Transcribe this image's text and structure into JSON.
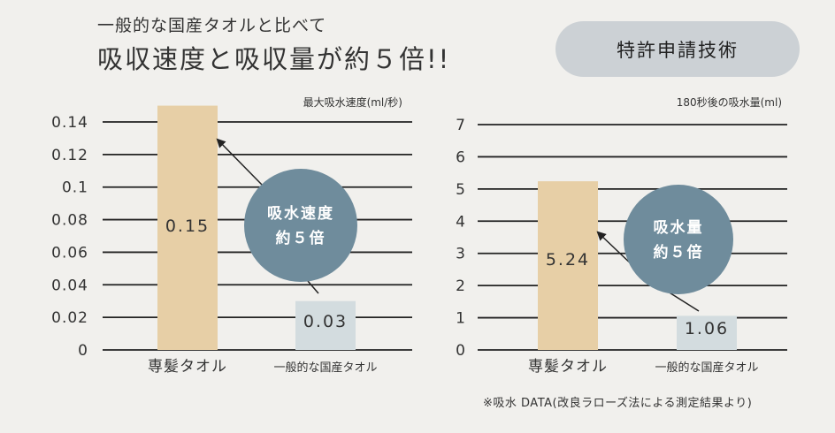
{
  "header": {
    "subtitle": "一般的な国産タオルと比べて",
    "title": "吸収速度と吸収量が約５倍!!"
  },
  "badge": {
    "label": "特許申請技術"
  },
  "footnote": "※吸水 DATA(改良ラローズ法による測定結果より)",
  "colors": {
    "bar_primary": "#e7cfa6",
    "bar_secondary": "#d3dcdf",
    "circle": "#6f8c9c",
    "grid": "#222222"
  },
  "chart_data": [
    {
      "type": "bar",
      "ylabel": "最大吸水速度(ml/秒)",
      "categories": [
        "専髪タオル",
        "一般的な国産タオル"
      ],
      "values": [
        0.15,
        0.03
      ],
      "value_labels": [
        "0.15",
        "0.03"
      ],
      "yticks": [
        0,
        0.02,
        0.04,
        0.06,
        0.08,
        0.1,
        0.12,
        0.14
      ],
      "ytick_labels": [
        "0",
        "0.02",
        "0.04",
        "0.06",
        "0.08",
        "0.1",
        "0.12",
        "0.14"
      ],
      "ylim": [
        0,
        0.14
      ],
      "grid": true,
      "callout": [
        "吸水速度",
        "約５倍"
      ]
    },
    {
      "type": "bar",
      "ylabel": "180秒後の吸水量(ml)",
      "categories": [
        "専髪タオル",
        "一般的な国産タオル"
      ],
      "values": [
        5.24,
        1.06
      ],
      "value_labels": [
        "5.24",
        "1.06"
      ],
      "yticks": [
        0,
        1,
        2,
        3,
        4,
        5,
        6,
        7
      ],
      "ytick_labels": [
        "0",
        "1",
        "2",
        "3",
        "4",
        "5",
        "6",
        "7"
      ],
      "ylim": [
        0,
        7
      ],
      "grid": true,
      "callout": [
        "吸水量",
        "約５倍"
      ]
    }
  ]
}
